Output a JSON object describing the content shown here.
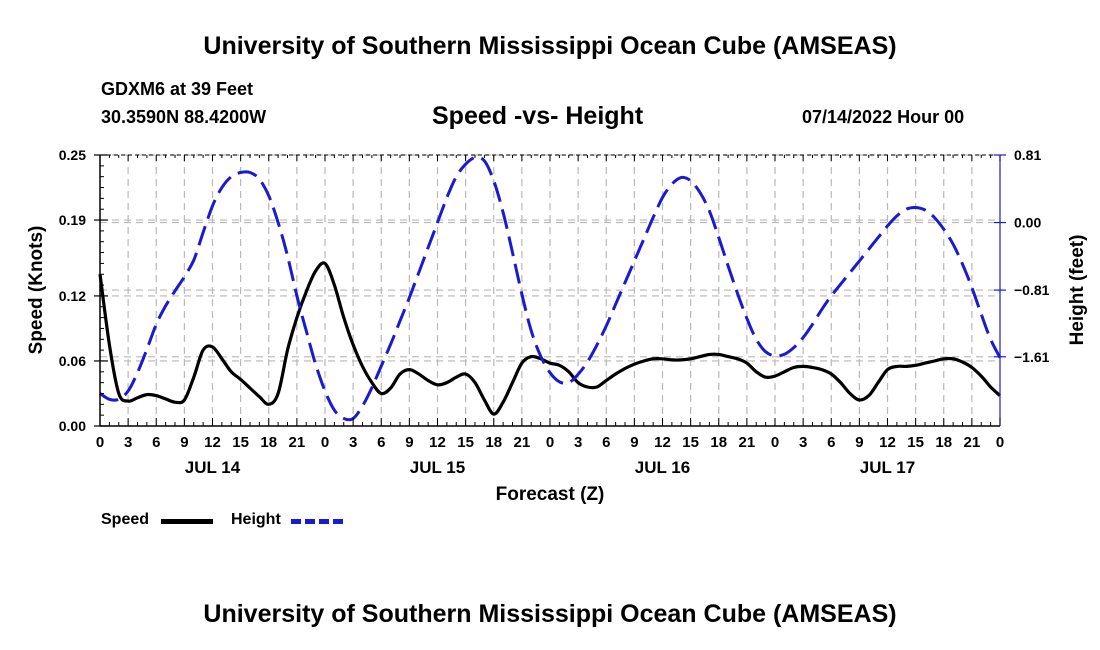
{
  "header": {
    "title": "University of Southern Mississippi Ocean Cube (AMSEAS)",
    "station": "GDXM6 at 39 Feet",
    "coords": "30.3590N  88.4200W",
    "chart_title": "Speed -vs- Height",
    "datetime": "07/14/2022 Hour 00"
  },
  "footer": {
    "title": "University of Southern Mississippi Ocean Cube (AMSEAS)"
  },
  "legend": {
    "speed_label": "Speed",
    "height_label": "Height"
  },
  "colors": {
    "speed": "#000000",
    "height": "#1a1ad0",
    "grid": "#b8b8b8"
  },
  "chart_data": {
    "type": "line",
    "title": "Speed -vs- Height",
    "xlabel": "Forecast (Z)",
    "ylabel": "Speed (Knots)",
    "y2label": "Height (feet)",
    "xlim": [
      0,
      96
    ],
    "ylim": [
      0,
      0.25
    ],
    "y2lim": [
      -2.44,
      0.81
    ],
    "x_ticks": [
      0,
      3,
      6,
      9,
      12,
      15,
      18,
      21,
      24,
      27,
      30,
      33,
      36,
      39,
      42,
      45,
      48,
      51,
      54,
      57,
      60,
      63,
      66,
      69,
      72,
      75,
      78,
      81,
      84,
      87,
      90,
      93,
      96
    ],
    "x_tick_labels": [
      "0",
      "3",
      "6",
      "9",
      "12",
      "15",
      "18",
      "21",
      "0",
      "3",
      "6",
      "9",
      "12",
      "15",
      "18",
      "21",
      "0",
      "3",
      "6",
      "9",
      "12",
      "15",
      "18",
      "21",
      "0",
      "3",
      "6",
      "9",
      "12",
      "15",
      "18",
      "21",
      "0"
    ],
    "date_labels": [
      {
        "x": 12,
        "label": "JUL 14"
      },
      {
        "x": 36,
        "label": "JUL 15"
      },
      {
        "x": 60,
        "label": "JUL 16"
      },
      {
        "x": 84,
        "label": "JUL 17"
      }
    ],
    "y_ticks": [
      0.0,
      0.06,
      0.12,
      0.19,
      0.25
    ],
    "y_tick_labels": [
      "0.00",
      "0.06",
      "0.12",
      "0.19",
      "0.25"
    ],
    "y2_ticks": [
      -1.61,
      -0.81,
      0.0,
      0.81
    ],
    "y2_tick_labels": [
      "−1.61",
      "−0.81",
      "0.00",
      "0.81"
    ],
    "grid": true,
    "series": [
      {
        "name": "Speed",
        "axis": "left",
        "style": "solid",
        "x": [
          0,
          1,
          2,
          3,
          4,
          5,
          6,
          7,
          8,
          9,
          10,
          11,
          12,
          13,
          14,
          15,
          16,
          17,
          18,
          19,
          20,
          21,
          22,
          23,
          24,
          25,
          26,
          27,
          28,
          29,
          30,
          31,
          32,
          33,
          34,
          35,
          36,
          37,
          38,
          39,
          40,
          41,
          42,
          43,
          44,
          45,
          46,
          47,
          48,
          49,
          50,
          51,
          52,
          53,
          54,
          55,
          56,
          57,
          58,
          59,
          60,
          61,
          62,
          63,
          64,
          65,
          66,
          67,
          68,
          69,
          70,
          71,
          72,
          73,
          74,
          75,
          76,
          77,
          78,
          79,
          80,
          81,
          82,
          83,
          84,
          85,
          86,
          87,
          88,
          89,
          90,
          91,
          92,
          93,
          94,
          95,
          96
        ],
        "values": [
          0.14,
          0.075,
          0.03,
          0.023,
          0.026,
          0.029,
          0.028,
          0.025,
          0.022,
          0.024,
          0.045,
          0.07,
          0.073,
          0.062,
          0.05,
          0.043,
          0.035,
          0.027,
          0.02,
          0.03,
          0.07,
          0.1,
          0.124,
          0.143,
          0.15,
          0.13,
          0.1,
          0.075,
          0.055,
          0.04,
          0.03,
          0.035,
          0.048,
          0.052,
          0.048,
          0.042,
          0.038,
          0.04,
          0.045,
          0.048,
          0.04,
          0.024,
          0.011,
          0.022,
          0.04,
          0.058,
          0.064,
          0.062,
          0.058,
          0.056,
          0.05,
          0.04,
          0.036,
          0.036,
          0.042,
          0.048,
          0.053,
          0.057,
          0.06,
          0.062,
          0.062,
          0.061,
          0.061,
          0.062,
          0.064,
          0.066,
          0.066,
          0.064,
          0.062,
          0.058,
          0.05,
          0.045,
          0.046,
          0.05,
          0.054,
          0.055,
          0.054,
          0.052,
          0.048,
          0.04,
          0.03,
          0.024,
          0.028,
          0.04,
          0.052,
          0.055,
          0.055,
          0.056,
          0.058,
          0.06,
          0.062,
          0.062,
          0.059,
          0.054,
          0.046,
          0.036,
          0.028
        ]
      },
      {
        "name": "Height",
        "axis": "right",
        "style": "dashed",
        "x": [
          0,
          1,
          2,
          3,
          4,
          5,
          6,
          7,
          8,
          9,
          10,
          11,
          12,
          13,
          14,
          15,
          16,
          17,
          18,
          19,
          20,
          21,
          22,
          23,
          24,
          25,
          26,
          27,
          28,
          29,
          30,
          31,
          32,
          33,
          34,
          35,
          36,
          37,
          38,
          39,
          40,
          41,
          42,
          43,
          44,
          45,
          46,
          47,
          48,
          49,
          50,
          51,
          52,
          53,
          54,
          55,
          56,
          57,
          58,
          59,
          60,
          61,
          62,
          63,
          64,
          65,
          66,
          67,
          68,
          69,
          70,
          71,
          72,
          73,
          74,
          75,
          76,
          77,
          78,
          79,
          80,
          81,
          82,
          83,
          84,
          85,
          86,
          87,
          88,
          89,
          90,
          91,
          92,
          93,
          94,
          95,
          96
        ],
        "values": [
          -2.05,
          -2.12,
          -2.12,
          -2.02,
          -1.8,
          -1.52,
          -1.22,
          -1.0,
          -0.82,
          -0.65,
          -0.45,
          -0.12,
          0.2,
          0.42,
          0.55,
          0.6,
          0.6,
          0.52,
          0.32,
          0.0,
          -0.4,
          -0.88,
          -1.3,
          -1.7,
          -2.02,
          -2.25,
          -2.35,
          -2.35,
          -2.2,
          -1.98,
          -1.72,
          -1.46,
          -1.18,
          -0.9,
          -0.6,
          -0.3,
          0.0,
          0.3,
          0.55,
          0.7,
          0.78,
          0.74,
          0.5,
          0.12,
          -0.36,
          -0.86,
          -1.3,
          -1.6,
          -1.8,
          -1.91,
          -1.92,
          -1.82,
          -1.67,
          -1.47,
          -1.24,
          -0.98,
          -0.72,
          -0.46,
          -0.2,
          0.06,
          0.3,
          0.46,
          0.54,
          0.5,
          0.36,
          0.14,
          -0.18,
          -0.52,
          -0.85,
          -1.15,
          -1.4,
          -1.55,
          -1.6,
          -1.58,
          -1.5,
          -1.38,
          -1.22,
          -1.04,
          -0.88,
          -0.74,
          -0.6,
          -0.46,
          -0.32,
          -0.18,
          -0.04,
          0.08,
          0.16,
          0.18,
          0.15,
          0.06,
          -0.08,
          -0.26,
          -0.5,
          -0.78,
          -1.1,
          -1.4,
          -1.62
        ]
      }
    ]
  }
}
